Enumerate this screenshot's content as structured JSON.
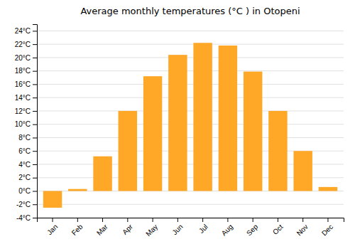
{
  "chart_data": {
    "type": "bar",
    "title": "Average monthly temperatures (°C ) in Otopeni",
    "categories": [
      "Jan",
      "Feb",
      "Mar",
      "Apr",
      "May",
      "Jun",
      "Jul",
      "Aug",
      "Sep",
      "Oct",
      "Nov",
      "Dec"
    ],
    "values": [
      -2.5,
      0.3,
      5.2,
      12.0,
      17.2,
      20.4,
      22.2,
      21.8,
      17.9,
      12.0,
      6.0,
      0.6
    ],
    "color": "#FFA726",
    "ylim": [
      -4,
      25
    ],
    "yticks": [
      {
        "value": -4,
        "label": "-4°C"
      },
      {
        "value": -2,
        "label": "-2°C"
      },
      {
        "value": 0,
        "label": "0°C"
      },
      {
        "value": 2,
        "label": "2°C"
      },
      {
        "value": 4,
        "label": "4°C"
      },
      {
        "value": 6,
        "label": "6°C"
      },
      {
        "value": 8,
        "label": "8°C"
      },
      {
        "value": 10,
        "label": "10°C"
      },
      {
        "value": 12,
        "label": "12°C"
      },
      {
        "value": 14,
        "label": "14°C"
      },
      {
        "value": 16,
        "label": "16°C"
      },
      {
        "value": 18,
        "label": "18°C"
      },
      {
        "value": 20,
        "label": "20°C"
      },
      {
        "value": 22,
        "label": "22°C"
      },
      {
        "value": 24,
        "label": "24°C"
      }
    ],
    "grid": true
  }
}
